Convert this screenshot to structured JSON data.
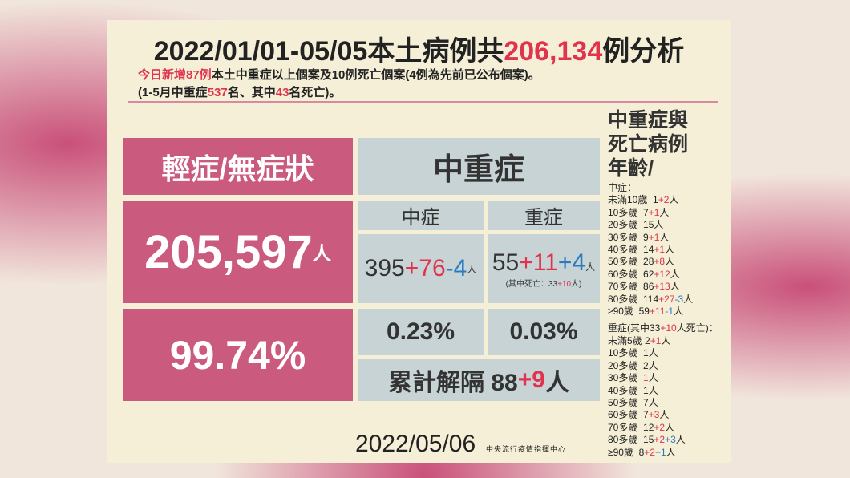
{
  "title": [
    {
      "text": "2022/01/01-05/05本土病例共"
    },
    {
      "text": "206,134",
      "color": "#e0344e"
    },
    {
      "text": "例分析"
    }
  ],
  "subtitle": [
    [
      {
        "text": "今日新增87例",
        "color": "#e0344e"
      },
      {
        "text": "本土中重症以上個案及10例死亡個案(4例為先前已公布個案)。"
      }
    ],
    [
      {
        "text": "(1-5月中重症"
      },
      {
        "text": "537",
        "color": "#e0344e"
      },
      {
        "text": "名、其中"
      },
      {
        "text": "43",
        "color": "#e0344e"
      },
      {
        "text": "名死亡)。"
      }
    ]
  ],
  "mild": {
    "header": "輕症/無症狀",
    "count": [
      {
        "text": "205,597"
      },
      {
        "text": "人",
        "small": true
      }
    ],
    "percent": "99.74%"
  },
  "severe": {
    "header": "中重症",
    "moderate": {
      "label": "中症",
      "count": [
        {
          "text": "395"
        },
        {
          "text": "+76",
          "color": "#e0344e"
        },
        {
          "text": "-4",
          "color": "#2a7bbf"
        },
        {
          "text": "人",
          "small": true
        }
      ],
      "percent": "0.23%"
    },
    "critical": {
      "label": "重症",
      "count": [
        {
          "text": "55"
        },
        {
          "text": "+11",
          "color": "#e0344e"
        },
        {
          "text": "+4",
          "color": "#2a7bbf"
        },
        {
          "text": "人",
          "small": true
        }
      ],
      "note": [
        {
          "text": "(其中死亡：33"
        },
        {
          "text": "+10",
          "color": "#e0344e"
        },
        {
          "text": "人)"
        }
      ],
      "percent": "0.03%"
    },
    "released": [
      {
        "text": "累計解隔 88"
      },
      {
        "text": "+9",
        "color": "#e0344e"
      },
      {
        "text": "人"
      }
    ]
  },
  "side": {
    "heading": [
      "中重症與",
      "死亡病例",
      "年齡/"
    ],
    "moderate_title": "中症：",
    "moderate_rows": [
      [
        {
          "text": "未滿10歲  1"
        },
        {
          "text": "+2",
          "color": "#e0344e"
        },
        {
          "text": "人"
        }
      ],
      [
        {
          "text": "10多歲  7"
        },
        {
          "text": "+1",
          "color": "#e0344e"
        },
        {
          "text": "人"
        }
      ],
      [
        {
          "text": "20多歲  15人"
        }
      ],
      [
        {
          "text": "30多歲  9"
        },
        {
          "text": "+1",
          "color": "#e0344e"
        },
        {
          "text": "人"
        }
      ],
      [
        {
          "text": "40多歲  14"
        },
        {
          "text": "+1",
          "color": "#e0344e"
        },
        {
          "text": "人"
        }
      ],
      [
        {
          "text": "50多歲  28"
        },
        {
          "text": "+8",
          "color": "#e0344e"
        },
        {
          "text": "人"
        }
      ],
      [
        {
          "text": "60多歲  62"
        },
        {
          "text": "+12",
          "color": "#e0344e"
        },
        {
          "text": "人"
        }
      ],
      [
        {
          "text": "70多歲  86"
        },
        {
          "text": "+13",
          "color": "#e0344e"
        },
        {
          "text": "人"
        }
      ],
      [
        {
          "text": "80多歲  114"
        },
        {
          "text": "+27",
          "color": "#e0344e"
        },
        {
          "text": "-3",
          "color": "#2a7bbf"
        },
        {
          "text": "人"
        }
      ],
      [
        {
          "text": "≥90歲  59"
        },
        {
          "text": "+11",
          "color": "#e0344e"
        },
        {
          "text": "-1",
          "color": "#2a7bbf"
        },
        {
          "text": "人"
        }
      ]
    ],
    "critical_title": [
      {
        "text": "重症(其中33"
      },
      {
        "text": "+10",
        "color": "#e0344e"
      },
      {
        "text": "人死亡)："
      }
    ],
    "critical_rows": [
      [
        {
          "text": "未滿5歲 2"
        },
        {
          "text": "+1",
          "color": "#e0344e"
        },
        {
          "text": "人"
        }
      ],
      [
        {
          "text": "10多歲  1人"
        }
      ],
      [
        {
          "text": "20多歲  2人"
        }
      ],
      [
        {
          "text": "30多歲  "
        },
        {
          "text": "1",
          "color": "#e0344e"
        },
        {
          "text": "人"
        }
      ],
      [
        {
          "text": "40多歲  1人"
        }
      ],
      [
        {
          "text": "50多歲  7人"
        }
      ],
      [
        {
          "text": "60多歲  7"
        },
        {
          "text": "+3",
          "color": "#e0344e"
        },
        {
          "text": "人"
        }
      ],
      [
        {
          "text": "70多歲  12"
        },
        {
          "text": "+2",
          "color": "#e0344e"
        },
        {
          "text": "人"
        }
      ],
      [
        {
          "text": "80多歲  15"
        },
        {
          "text": "+2",
          "color": "#e0344e"
        },
        {
          "text": "+3",
          "color": "#2a7bbf"
        },
        {
          "text": "人"
        }
      ],
      [
        {
          "text": "≥90歲  8"
        },
        {
          "text": "+2",
          "color": "#e0344e"
        },
        {
          "text": "+1",
          "color": "#2a7bbf"
        },
        {
          "text": "人"
        }
      ]
    ]
  },
  "footer": {
    "date": "2022/05/06",
    "org": "中央流行疫情指揮中心"
  }
}
